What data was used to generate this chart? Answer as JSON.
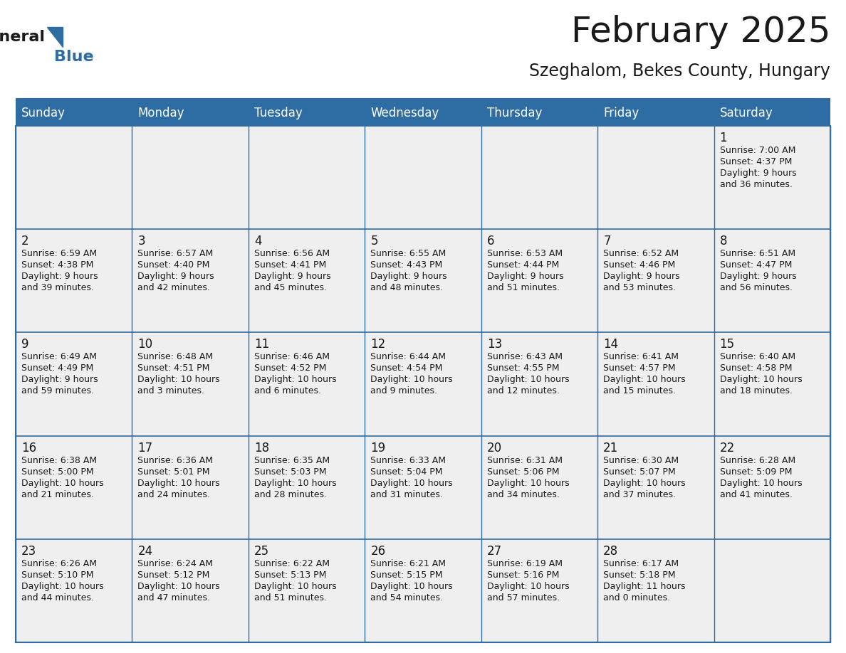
{
  "title": "February 2025",
  "subtitle": "Szeghalom, Bekes County, Hungary",
  "header_bg": "#2E6DA4",
  "header_text_color": "#FFFFFF",
  "cell_bg": "#EFEFEF",
  "text_color_dark": "#1a1a1a",
  "text_color_day_num": "#1a1a1a",
  "border_color": "#2E6DA4",
  "days_of_week": [
    "Sunday",
    "Monday",
    "Tuesday",
    "Wednesday",
    "Thursday",
    "Friday",
    "Saturday"
  ],
  "weeks": [
    [
      {
        "day": "",
        "lines": []
      },
      {
        "day": "",
        "lines": []
      },
      {
        "day": "",
        "lines": []
      },
      {
        "day": "",
        "lines": []
      },
      {
        "day": "",
        "lines": []
      },
      {
        "day": "",
        "lines": []
      },
      {
        "day": "1",
        "lines": [
          "Sunrise: 7:00 AM",
          "Sunset: 4:37 PM",
          "Daylight: 9 hours",
          "and 36 minutes."
        ]
      }
    ],
    [
      {
        "day": "2",
        "lines": [
          "Sunrise: 6:59 AM",
          "Sunset: 4:38 PM",
          "Daylight: 9 hours",
          "and 39 minutes."
        ]
      },
      {
        "day": "3",
        "lines": [
          "Sunrise: 6:57 AM",
          "Sunset: 4:40 PM",
          "Daylight: 9 hours",
          "and 42 minutes."
        ]
      },
      {
        "day": "4",
        "lines": [
          "Sunrise: 6:56 AM",
          "Sunset: 4:41 PM",
          "Daylight: 9 hours",
          "and 45 minutes."
        ]
      },
      {
        "day": "5",
        "lines": [
          "Sunrise: 6:55 AM",
          "Sunset: 4:43 PM",
          "Daylight: 9 hours",
          "and 48 minutes."
        ]
      },
      {
        "day": "6",
        "lines": [
          "Sunrise: 6:53 AM",
          "Sunset: 4:44 PM",
          "Daylight: 9 hours",
          "and 51 minutes."
        ]
      },
      {
        "day": "7",
        "lines": [
          "Sunrise: 6:52 AM",
          "Sunset: 4:46 PM",
          "Daylight: 9 hours",
          "and 53 minutes."
        ]
      },
      {
        "day": "8",
        "lines": [
          "Sunrise: 6:51 AM",
          "Sunset: 4:47 PM",
          "Daylight: 9 hours",
          "and 56 minutes."
        ]
      }
    ],
    [
      {
        "day": "9",
        "lines": [
          "Sunrise: 6:49 AM",
          "Sunset: 4:49 PM",
          "Daylight: 9 hours",
          "and 59 minutes."
        ]
      },
      {
        "day": "10",
        "lines": [
          "Sunrise: 6:48 AM",
          "Sunset: 4:51 PM",
          "Daylight: 10 hours",
          "and 3 minutes."
        ]
      },
      {
        "day": "11",
        "lines": [
          "Sunrise: 6:46 AM",
          "Sunset: 4:52 PM",
          "Daylight: 10 hours",
          "and 6 minutes."
        ]
      },
      {
        "day": "12",
        "lines": [
          "Sunrise: 6:44 AM",
          "Sunset: 4:54 PM",
          "Daylight: 10 hours",
          "and 9 minutes."
        ]
      },
      {
        "day": "13",
        "lines": [
          "Sunrise: 6:43 AM",
          "Sunset: 4:55 PM",
          "Daylight: 10 hours",
          "and 12 minutes."
        ]
      },
      {
        "day": "14",
        "lines": [
          "Sunrise: 6:41 AM",
          "Sunset: 4:57 PM",
          "Daylight: 10 hours",
          "and 15 minutes."
        ]
      },
      {
        "day": "15",
        "lines": [
          "Sunrise: 6:40 AM",
          "Sunset: 4:58 PM",
          "Daylight: 10 hours",
          "and 18 minutes."
        ]
      }
    ],
    [
      {
        "day": "16",
        "lines": [
          "Sunrise: 6:38 AM",
          "Sunset: 5:00 PM",
          "Daylight: 10 hours",
          "and 21 minutes."
        ]
      },
      {
        "day": "17",
        "lines": [
          "Sunrise: 6:36 AM",
          "Sunset: 5:01 PM",
          "Daylight: 10 hours",
          "and 24 minutes."
        ]
      },
      {
        "day": "18",
        "lines": [
          "Sunrise: 6:35 AM",
          "Sunset: 5:03 PM",
          "Daylight: 10 hours",
          "and 28 minutes."
        ]
      },
      {
        "day": "19",
        "lines": [
          "Sunrise: 6:33 AM",
          "Sunset: 5:04 PM",
          "Daylight: 10 hours",
          "and 31 minutes."
        ]
      },
      {
        "day": "20",
        "lines": [
          "Sunrise: 6:31 AM",
          "Sunset: 5:06 PM",
          "Daylight: 10 hours",
          "and 34 minutes."
        ]
      },
      {
        "day": "21",
        "lines": [
          "Sunrise: 6:30 AM",
          "Sunset: 5:07 PM",
          "Daylight: 10 hours",
          "and 37 minutes."
        ]
      },
      {
        "day": "22",
        "lines": [
          "Sunrise: 6:28 AM",
          "Sunset: 5:09 PM",
          "Daylight: 10 hours",
          "and 41 minutes."
        ]
      }
    ],
    [
      {
        "day": "23",
        "lines": [
          "Sunrise: 6:26 AM",
          "Sunset: 5:10 PM",
          "Daylight: 10 hours",
          "and 44 minutes."
        ]
      },
      {
        "day": "24",
        "lines": [
          "Sunrise: 6:24 AM",
          "Sunset: 5:12 PM",
          "Daylight: 10 hours",
          "and 47 minutes."
        ]
      },
      {
        "day": "25",
        "lines": [
          "Sunrise: 6:22 AM",
          "Sunset: 5:13 PM",
          "Daylight: 10 hours",
          "and 51 minutes."
        ]
      },
      {
        "day": "26",
        "lines": [
          "Sunrise: 6:21 AM",
          "Sunset: 5:15 PM",
          "Daylight: 10 hours",
          "and 54 minutes."
        ]
      },
      {
        "day": "27",
        "lines": [
          "Sunrise: 6:19 AM",
          "Sunset: 5:16 PM",
          "Daylight: 10 hours",
          "and 57 minutes."
        ]
      },
      {
        "day": "28",
        "lines": [
          "Sunrise: 6:17 AM",
          "Sunset: 5:18 PM",
          "Daylight: 11 hours",
          "and 0 minutes."
        ]
      },
      {
        "day": "",
        "lines": []
      }
    ]
  ],
  "logo_text1": "General",
  "logo_text2": "Blue",
  "logo_triangle_color": "#2E6DA4",
  "title_fontsize": 36,
  "subtitle_fontsize": 17,
  "header_fontsize": 12,
  "day_num_fontsize": 12,
  "info_fontsize": 9
}
